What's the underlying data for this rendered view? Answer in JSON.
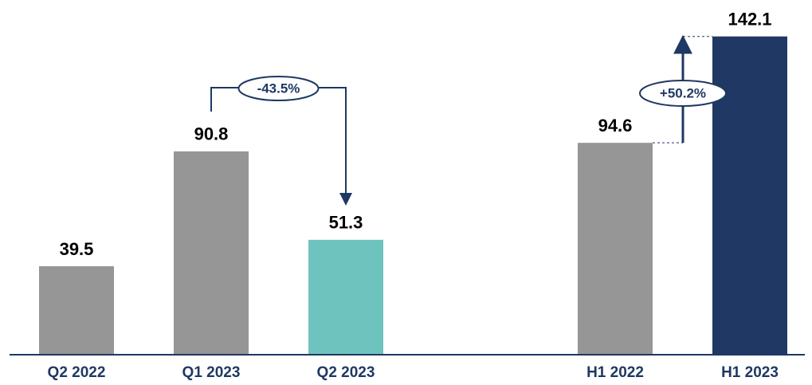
{
  "chart_data": {
    "type": "bar",
    "categories": [
      "Q2 2022",
      "Q1 2023",
      "Q2 2023",
      null,
      "H1 2022",
      "H1 2023"
    ],
    "values": [
      39.5,
      90.8,
      51.3,
      null,
      94.6,
      142.1
    ],
    "colors": [
      "#969696",
      "#969696",
      "#6fc3bf",
      null,
      "#969696",
      "#203864"
    ],
    "ylim": [
      0,
      150
    ],
    "annotations": [
      "-43.5%",
      "+50.2%"
    ]
  }
}
